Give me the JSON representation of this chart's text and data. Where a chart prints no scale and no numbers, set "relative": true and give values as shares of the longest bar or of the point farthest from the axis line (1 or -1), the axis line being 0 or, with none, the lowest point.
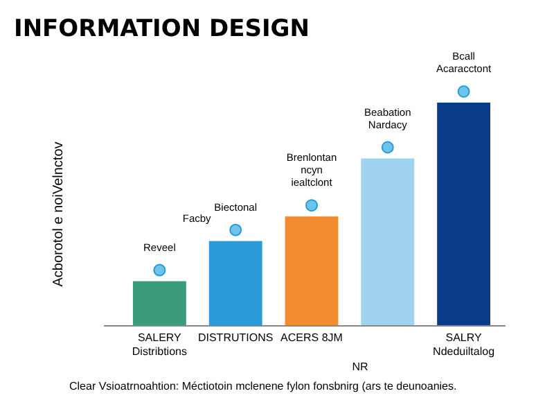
{
  "chart_data": {
    "type": "bar",
    "title": "INFORMATION DESIGN",
    "ylabel": "Acborotol e noiVelnctov",
    "xlabel": "NR",
    "relative": true,
    "categories": [
      "SALERY Distribtions",
      "DISTRUTIONS",
      "ACERS 8JM",
      null,
      "SALRY Ndeduiltalog"
    ],
    "values": [
      0.2,
      0.38,
      0.49,
      0.75,
      1
    ],
    "colors": [
      "#3a9a7a",
      "#2a9ad8",
      "#f28a30",
      "#9fd3f0",
      "#0a3a8a"
    ],
    "annotations": [
      {
        "text": "Reveel",
        "x": "SALERY Distribtions",
        "y": 0.2
      },
      {
        "text": "Facby",
        "x": "DISTRUTIONS",
        "y": 0.38
      },
      {
        "text": "Biectonal",
        "x": "DISTRUTIONS",
        "y": 0.38
      },
      {
        "text": "Brenlontan ncyn iealtclont",
        "x": "ACERS 8JM",
        "y": 0.49
      },
      {
        "text": "Beabation Nardacy",
        "y": 0.75
      },
      {
        "text": "Bcall Acaracctont",
        "x": "SALRY Ndeduiltalog",
        "y": 1
      },
      "Clear Vsioatrnoahtion: Méctiotoin mclenene fylon fonsbnirg (ars te deunoanies."
    ]
  }
}
